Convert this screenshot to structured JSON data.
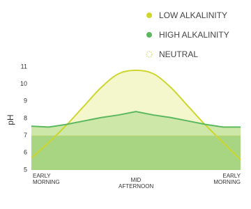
{
  "chart_data": {
    "type": "area",
    "y_label": "pH",
    "categories": [
      "EARLY MORNING",
      null,
      null,
      null,
      null,
      null,
      "MID AFTERNOON",
      null,
      null,
      null,
      null,
      null,
      "EARLY MORNING"
    ],
    "series": [
      {
        "name": "LOW ALKALINITY",
        "color": "#cdd62c",
        "fill": "#f4f6cb",
        "style": "solid",
        "values": [
          5.7,
          6.6,
          7.6,
          8.7,
          9.8,
          10.6,
          10.8,
          10.6,
          9.8,
          8.7,
          7.6,
          6.6,
          5.6
        ]
      },
      {
        "name": "HIGH ALKALINITY",
        "color": "#5cb85f",
        "fill": "#cde7a8",
        "style": "solid",
        "values": [
          7.55,
          7.5,
          7.65,
          7.85,
          8.05,
          8.2,
          8.4,
          8.2,
          8.05,
          7.85,
          7.65,
          7.5,
          7.5
        ]
      },
      {
        "name": "NEUTRAL",
        "color": "#d3db6e",
        "fill": "#a8d581",
        "style": "dotted",
        "values": [
          7,
          7,
          7,
          7,
          7,
          7,
          7,
          7,
          7,
          7,
          7,
          7,
          7
        ]
      }
    ],
    "ylim": [
      5,
      11
    ],
    "yticks": [
      5,
      6,
      7,
      8,
      9,
      10,
      11
    ],
    "legend": "top-right"
  }
}
